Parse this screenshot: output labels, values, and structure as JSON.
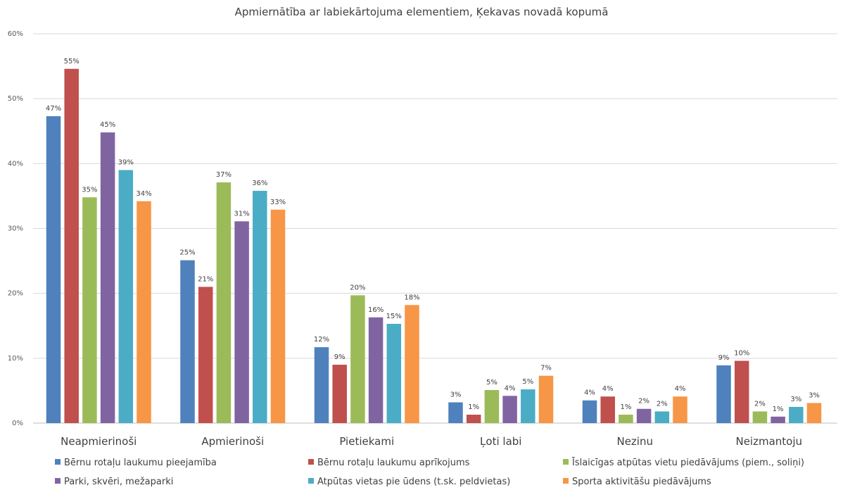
{
  "chart_data": {
    "type": "bar",
    "title": "Apmiernātība ar labiekārtojuma elementiem, Ķekavas novadā kopumā",
    "xlabel": "",
    "ylabel": "",
    "ylim": [
      0,
      60
    ],
    "yticks": [
      0,
      10,
      20,
      30,
      40,
      50,
      60
    ],
    "ytick_labels": [
      "0%",
      "10%",
      "20%",
      "30%",
      "40%",
      "50%",
      "60%"
    ],
    "grid": true,
    "legend_position": "bottom",
    "categories": [
      "Neapmierinoši",
      "Apmierinoši",
      "Pietiekami",
      "Ļoti labi",
      "Nezinu",
      "Neizmantoju"
    ],
    "series": [
      {
        "name": "Bērnu rotaļu laukumu pieejamība",
        "color": "#4f81bd",
        "values": [
          47.3,
          25.1,
          11.7,
          3.2,
          3.5,
          8.9
        ],
        "labels": [
          "47%",
          "25%",
          "12%",
          "3%",
          "4%",
          "9%"
        ]
      },
      {
        "name": "Bērnu rotaļu laukumu aprīkojums",
        "color": "#c0504d",
        "values": [
          54.6,
          21.0,
          9.0,
          1.3,
          4.1,
          9.6
        ],
        "labels": [
          "55%",
          "21%",
          "9%",
          "1%",
          "4%",
          "10%"
        ]
      },
      {
        "name": "Īslaicīgas atpūtas vietu piedāvājums (piem., soliņi)",
        "color": "#9bbb59",
        "values": [
          34.8,
          37.1,
          19.7,
          5.1,
          1.3,
          1.8
        ],
        "labels": [
          "35%",
          "37%",
          "20%",
          "5%",
          "1%",
          "2%"
        ]
      },
      {
        "name": "Parki, skvēri, mežaparki",
        "color": "#8064a2",
        "values": [
          44.8,
          31.1,
          16.3,
          4.2,
          2.2,
          1.0
        ],
        "labels": [
          "45%",
          "31%",
          "16%",
          "4%",
          "2%",
          "1%"
        ]
      },
      {
        "name": "Atpūtas vietas pie ūdens (t.sk. peldvietas)",
        "color": "#4bacc6",
        "values": [
          39.0,
          35.8,
          15.3,
          5.2,
          1.8,
          2.5
        ],
        "labels": [
          "39%",
          "36%",
          "15%",
          "5%",
          "2%",
          "3%"
        ]
      },
      {
        "name": "Sporta aktivitāšu piedāvājums",
        "color": "#f79646",
        "values": [
          34.2,
          32.9,
          18.2,
          7.3,
          4.1,
          3.1
        ],
        "labels": [
          "34%",
          "33%",
          "18%",
          "7%",
          "4%",
          "3%"
        ]
      }
    ]
  }
}
